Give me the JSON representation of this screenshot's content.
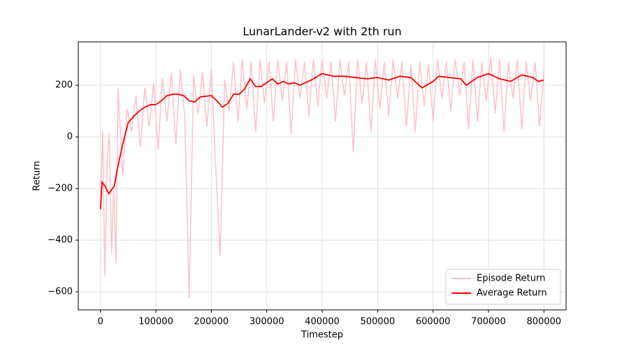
{
  "chart_data": {
    "type": "line",
    "title": "LunarLander-v2 with 2th run",
    "x_label": "Timestep",
    "y_label": "Return",
    "xlim": [
      -40000,
      840000
    ],
    "ylim": [
      -670,
      368
    ],
    "xticks": [
      0,
      100000,
      200000,
      300000,
      400000,
      500000,
      600000,
      700000,
      800000
    ],
    "yticks": [
      {
        "value": -600,
        "label": "−600"
      },
      {
        "value": -400,
        "label": "−400"
      },
      {
        "value": -200,
        "label": "−200"
      },
      0,
      200
    ],
    "grid": true,
    "legend": "lower right",
    "series": [
      {
        "name": "Episode Return",
        "color": "#ffc0cb",
        "x": [
          0,
          4000,
          8000,
          12000,
          16000,
          20000,
          24000,
          28000,
          32000,
          40000,
          48000,
          56000,
          64000,
          72000,
          80000,
          88000,
          96000,
          104000,
          112000,
          120000,
          128000,
          136000,
          144000,
          152000,
          160000,
          168000,
          176000,
          184000,
          192000,
          200000,
          208000,
          216000,
          224000,
          232000,
          240000,
          248000,
          256000,
          264000,
          272000,
          280000,
          288000,
          296000,
          304000,
          312000,
          320000,
          328000,
          336000,
          344000,
          352000,
          360000,
          368000,
          376000,
          384000,
          392000,
          400000,
          408000,
          416000,
          424000,
          432000,
          440000,
          448000,
          456000,
          464000,
          472000,
          480000,
          488000,
          496000,
          504000,
          512000,
          520000,
          528000,
          536000,
          544000,
          552000,
          560000,
          568000,
          576000,
          584000,
          592000,
          600000,
          608000,
          616000,
          624000,
          632000,
          640000,
          648000,
          656000,
          664000,
          672000,
          680000,
          688000,
          696000,
          704000,
          712000,
          720000,
          728000,
          736000,
          744000,
          752000,
          760000,
          768000,
          776000,
          784000,
          792000,
          800000
        ],
        "values": [
          -280,
          20,
          -540,
          -100,
          15,
          -450,
          -200,
          -490,
          190,
          -150,
          110,
          20,
          160,
          -40,
          190,
          40,
          210,
          -50,
          230,
          60,
          250,
          -30,
          260,
          80,
          -625,
          240,
          90,
          250,
          40,
          260,
          -120,
          -460,
          220,
          100,
          290,
          60,
          300,
          110,
          290,
          20,
          300,
          130,
          290,
          60,
          300,
          140,
          290,
          10,
          300,
          150,
          290,
          80,
          300,
          120,
          300,
          150,
          290,
          60,
          300,
          160,
          290,
          -60,
          300,
          130,
          290,
          20,
          300,
          110,
          290,
          80,
          300,
          150,
          290,
          40,
          280,
          20,
          290,
          120,
          280,
          60,
          300,
          150,
          290,
          100,
          300,
          160,
          290,
          30,
          300,
          60,
          290,
          140,
          310,
          90,
          300,
          20,
          290,
          150,
          300,
          30,
          290,
          140,
          290,
          40,
          260
        ]
      },
      {
        "name": "Average Return",
        "color": "#ff0000",
        "x": [
          0,
          3000,
          8000,
          15000,
          25000,
          30000,
          40000,
          50000,
          60000,
          70000,
          80000,
          90000,
          100000,
          110000,
          120000,
          130000,
          140000,
          150000,
          160000,
          170000,
          180000,
          200000,
          210000,
          220000,
          230000,
          240000,
          250000,
          260000,
          270000,
          280000,
          290000,
          300000,
          310000,
          320000,
          330000,
          340000,
          350000,
          360000,
          370000,
          380000,
          400000,
          420000,
          440000,
          460000,
          480000,
          500000,
          520000,
          540000,
          560000,
          580000,
          600000,
          610000,
          630000,
          650000,
          660000,
          680000,
          700000,
          720000,
          740000,
          760000,
          780000,
          790000,
          800000
        ],
        "values": [
          -280,
          -175,
          -190,
          -220,
          -190,
          -130,
          -30,
          55,
          80,
          100,
          115,
          125,
          125,
          140,
          160,
          165,
          165,
          160,
          140,
          135,
          155,
          160,
          140,
          115,
          130,
          165,
          165,
          185,
          225,
          195,
          195,
          210,
          225,
          205,
          215,
          205,
          210,
          200,
          210,
          220,
          245,
          235,
          235,
          230,
          225,
          230,
          220,
          235,
          230,
          190,
          215,
          235,
          230,
          225,
          200,
          230,
          245,
          225,
          215,
          240,
          230,
          215,
          220
        ]
      }
    ]
  }
}
